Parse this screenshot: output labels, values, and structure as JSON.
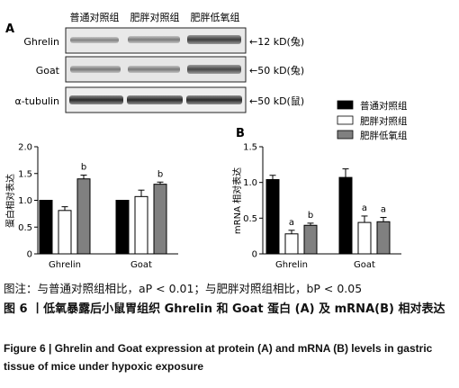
{
  "panel_a": {
    "letter": "A",
    "lane_headers": [
      "普通对照组",
      "肥胖对照组",
      "肥胖低氧组"
    ],
    "rows": [
      {
        "name": "Ghrelin",
        "marker": "←12 kD(兔)"
      },
      {
        "name": "Goat",
        "marker": "←50 kD(兔)"
      },
      {
        "name": "α-tubulin",
        "marker": "←50 kD(鼠)"
      }
    ]
  },
  "panel_b": {
    "letter": "B"
  },
  "legend": [
    {
      "label": "普通对照组",
      "color": "#000000"
    },
    {
      "label": "肥胖对照组",
      "color": "#ffffff"
    },
    {
      "label": "肥胖低氧组",
      "color": "#808080"
    }
  ],
  "chart_data": [
    {
      "type": "bar",
      "panel": "protein",
      "categories": [
        "Ghrelin",
        "Goat"
      ],
      "ylabel": "蛋白相对表达",
      "ylim": [
        0,
        2.0
      ],
      "yticks": [
        "0",
        "0.5",
        "1.0",
        "1.5",
        "2.0"
      ],
      "series": [
        {
          "values": [
            1.0,
            1.0
          ],
          "errors": [
            0,
            0
          ],
          "sig": [
            "",
            ""
          ],
          "color": "#000000"
        },
        {
          "values": [
            0.81,
            1.07
          ],
          "errors": [
            0.07,
            0.12
          ],
          "sig": [
            "",
            ""
          ],
          "color": "#ffffff"
        },
        {
          "values": [
            1.4,
            1.3
          ],
          "errors": [
            0.07,
            0.04
          ],
          "sig": [
            "b",
            "b"
          ],
          "color": "#808080"
        }
      ]
    },
    {
      "type": "bar",
      "panel": "mrna",
      "categories": [
        "Ghrelin",
        "Goat"
      ],
      "ylabel": "mRNA 相对表达",
      "ylim": [
        0,
        1.5
      ],
      "yticks": [
        "0",
        "0.5",
        "1.0",
        "1.5"
      ],
      "series": [
        {
          "values": [
            1.04,
            1.07
          ],
          "errors": [
            0.06,
            0.12
          ],
          "sig": [
            "",
            ""
          ],
          "color": "#000000"
        },
        {
          "values": [
            0.28,
            0.44
          ],
          "errors": [
            0.05,
            0.09
          ],
          "sig": [
            "a",
            "a"
          ],
          "color": "#ffffff"
        },
        {
          "values": [
            0.4,
            0.45
          ],
          "errors": [
            0.03,
            0.06
          ],
          "sig": [
            "b",
            "a"
          ],
          "color": "#808080"
        }
      ]
    }
  ],
  "caption": {
    "note": "图注：与普通对照组相比，aP < 0.01；与肥胖对照组相比，bP < 0.05",
    "title_cn": "图 6 丨低氧暴露后小鼠胃组织 Ghrelin 和 Goat 蛋白 (A) 及 mRNA(B) 相对表达",
    "title_en": "Figure 6 | Ghrelin and Goat expression at protein (A) and mRNA (B) levels in gastric tissue of mice under hypoxic exposure"
  }
}
